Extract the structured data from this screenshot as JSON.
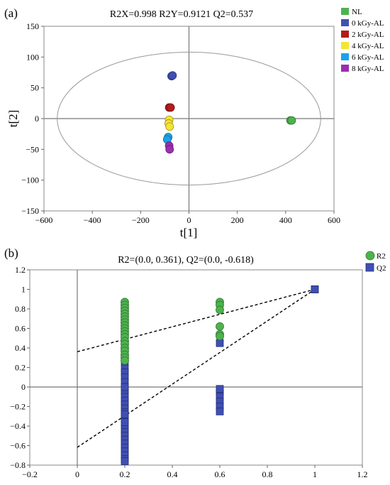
{
  "chart_data": [
    {
      "type": "scatter",
      "panel_label": "(a)",
      "title": "R2X=0.998   R2Y=0.9121   Q2=0.537",
      "xlabel": "t[1]",
      "ylabel": "t[2]",
      "xlim": [
        -600,
        600
      ],
      "ylim": [
        -150,
        150
      ],
      "xticks": [
        -600,
        -400,
        -200,
        0,
        200,
        400,
        600
      ],
      "yticks": [
        -150,
        -100,
        -50,
        0,
        50,
        100,
        150
      ],
      "ellipse": {
        "cx": 0,
        "cy": 0,
        "rx": 545,
        "ry": 108
      },
      "legend_position": "top-right",
      "series": [
        {
          "name": "NL",
          "color": "#4db34d",
          "points": [
            [
              420,
              -3
            ],
            [
              425,
              -3
            ]
          ]
        },
        {
          "name": "0 kGy-AL",
          "color": "#3f4fb5",
          "points": [
            [
              -72,
              69
            ],
            [
              -68,
              70
            ]
          ]
        },
        {
          "name": "2 kGy-AL",
          "color": "#b31b1b",
          "points": [
            [
              -82,
              18
            ],
            [
              -76,
              18
            ]
          ]
        },
        {
          "name": "4 kGy-AL",
          "color": "#f4e531",
          "points": [
            [
              -82,
              -2
            ],
            [
              -84,
              -8
            ],
            [
              -80,
              -13
            ]
          ]
        },
        {
          "name": "6 kGy-AL",
          "color": "#1aa3e8",
          "points": [
            [
              -86,
              -30
            ],
            [
              -90,
              -34
            ]
          ]
        },
        {
          "name": "8 kGy-AL",
          "color": "#9b2fae",
          "points": [
            [
              -82,
              -44
            ],
            [
              -80,
              -50
            ]
          ]
        }
      ]
    },
    {
      "type": "scatter",
      "panel_label": "(b)",
      "title": "R2=(0.0, 0.361), Q2=(0.0, -0.618)",
      "xlim": [
        -0.2,
        1.2
      ],
      "ylim": [
        -0.8,
        1.2
      ],
      "xticks": [
        "-0.2",
        "0",
        "0.2",
        "0.4",
        "0.6",
        "0.8",
        "1",
        "1.2"
      ],
      "yticks": [
        "-0.8",
        "-0.6",
        "-0.4",
        "-0.2",
        "0",
        "0.2",
        "0.4",
        "0.6",
        "0.8",
        "1",
        "1.2"
      ],
      "legend_position": "top-right",
      "series": [
        {
          "name": "R2",
          "color": "#4db34d",
          "marker": "circle",
          "x": [
            0.2,
            0.2,
            0.2,
            0.2,
            0.2,
            0.2,
            0.2,
            0.2,
            0.2,
            0.2,
            0.2,
            0.2,
            0.2,
            0.2,
            0.2,
            0.2,
            0.2,
            0.2,
            0.2,
            0.2,
            0.6,
            0.6,
            0.6,
            0.6,
            0.6,
            0.6,
            1.0
          ],
          "y": [
            0.87,
            0.84,
            0.81,
            0.78,
            0.75,
            0.72,
            0.69,
            0.66,
            0.63,
            0.6,
            0.57,
            0.54,
            0.51,
            0.47,
            0.44,
            0.4,
            0.37,
            0.33,
            0.3,
            0.27,
            0.87,
            0.84,
            0.79,
            0.62,
            0.54,
            0.52,
            1.0
          ]
        },
        {
          "name": "Q2",
          "color": "#3f4fb5",
          "marker": "square",
          "x": [
            0.2,
            0.2,
            0.2,
            0.2,
            0.2,
            0.2,
            0.2,
            0.2,
            0.2,
            0.2,
            0.2,
            0.2,
            0.2,
            0.2,
            0.2,
            0.2,
            0.2,
            0.2,
            0.2,
            0.2,
            0.2,
            0.2,
            0.2,
            0.2,
            0.2,
            0.2,
            0.2,
            0.2,
            0.2,
            0.2,
            0.2,
            0.2,
            0.2,
            0.2,
            0.2,
            0.6,
            0.6,
            0.6,
            0.6,
            0.6,
            0.6,
            0.6,
            1.0
          ],
          "y": [
            0.53,
            0.45,
            0.35,
            0.26,
            0.19,
            0.15,
            0.1,
            0.05,
            0.0,
            -0.05,
            -0.1,
            -0.14,
            -0.18,
            -0.22,
            -0.26,
            -0.3,
            -0.34,
            -0.38,
            -0.42,
            -0.46,
            -0.5,
            -0.54,
            -0.58,
            -0.62,
            -0.66,
            -0.7,
            -0.74,
            -0.76,
            0.55,
            0.4,
            0.3,
            -0.03,
            -0.28,
            0.0,
            -0.36,
            0.45,
            -0.05,
            -0.1,
            -0.15,
            -0.2,
            -0.25,
            -0.02,
            1.0
          ]
        }
      ],
      "regression_lines": [
        {
          "name": "R2",
          "x": [
            0,
            1
          ],
          "y": [
            0.361,
            1.0
          ]
        },
        {
          "name": "Q2",
          "x": [
            0,
            1
          ],
          "y": [
            -0.618,
            1.0
          ]
        }
      ]
    }
  ]
}
